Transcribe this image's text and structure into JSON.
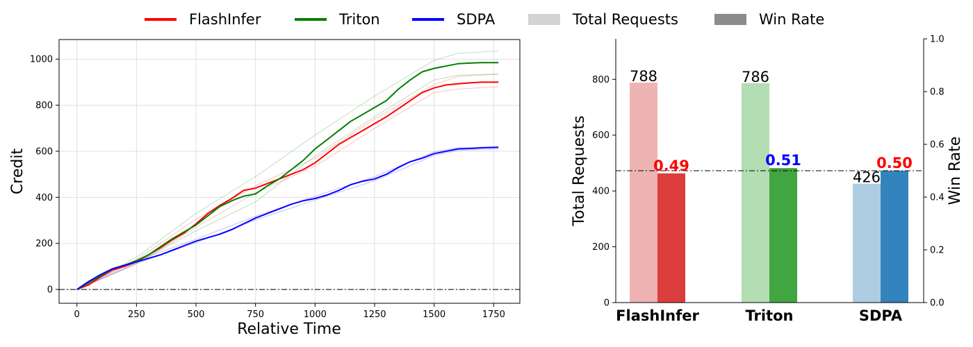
{
  "legend": {
    "items": [
      {
        "label": "FlashInfer",
        "kind": "line",
        "color": "#ff0000"
      },
      {
        "label": "Triton",
        "kind": "line",
        "color": "#008000"
      },
      {
        "label": "SDPA",
        "kind": "line",
        "color": "#0000ff"
      },
      {
        "label": "Total Requests",
        "kind": "patch",
        "color": "#d3d3d3"
      },
      {
        "label": "Win Rate",
        "kind": "patch",
        "color": "#8c8c8c"
      }
    ]
  },
  "chart_data": [
    {
      "type": "line",
      "title": "",
      "xlabel": "Relative Time",
      "ylabel": "Credit",
      "xlim": [
        -75,
        1860
      ],
      "ylim": [
        -60,
        1085
      ],
      "xticks": [
        0,
        250,
        500,
        750,
        1000,
        1250,
        1500,
        1750
      ],
      "yticks": [
        0,
        200,
        400,
        600,
        800,
        1000
      ],
      "grid": true,
      "reference_line": {
        "y": 0,
        "style": "dash-dot",
        "color": "#000000"
      },
      "series": [
        {
          "name": "FlashInfer",
          "color": "#ff0000",
          "x": [
            0,
            50,
            100,
            150,
            200,
            250,
            300,
            350,
            400,
            450,
            500,
            550,
            600,
            650,
            700,
            750,
            800,
            850,
            900,
            950,
            1000,
            1050,
            1100,
            1150,
            1200,
            1250,
            1300,
            1350,
            1400,
            1450,
            1500,
            1550,
            1600,
            1650,
            1700,
            1770
          ],
          "y": [
            0,
            20,
            55,
            85,
            100,
            120,
            150,
            180,
            215,
            245,
            285,
            330,
            365,
            395,
            430,
            440,
            460,
            480,
            500,
            520,
            550,
            590,
            630,
            660,
            690,
            720,
            750,
            785,
            820,
            855,
            875,
            888,
            893,
            897,
            900,
            900
          ],
          "band": [
            {
              "x": [
                0,
                250,
                500,
                750,
                1000,
                1250,
                1500,
                1600,
                1770
              ],
              "y": [
                0,
                130,
                305,
                450,
                570,
                740,
                890,
                925,
                935
              ]
            },
            {
              "x": [
                0,
                250,
                500,
                750,
                1000,
                1250,
                1500,
                1600,
                1770
              ],
              "y": [
                0,
                110,
                270,
                420,
                535,
                700,
                855,
                870,
                880
              ]
            }
          ]
        },
        {
          "name": "Triton",
          "color": "#008000",
          "x": [
            0,
            50,
            100,
            150,
            200,
            250,
            300,
            350,
            400,
            450,
            500,
            550,
            600,
            650,
            700,
            750,
            800,
            850,
            900,
            950,
            1000,
            1050,
            1100,
            1150,
            1200,
            1250,
            1300,
            1350,
            1400,
            1450,
            1500,
            1550,
            1600,
            1650,
            1700,
            1770
          ],
          "y": [
            0,
            30,
            60,
            90,
            105,
            125,
            150,
            185,
            220,
            250,
            280,
            320,
            360,
            385,
            405,
            415,
            450,
            480,
            520,
            560,
            610,
            650,
            690,
            730,
            760,
            790,
            820,
            870,
            910,
            945,
            960,
            970,
            980,
            983,
            985,
            985
          ],
          "band": [
            {
              "x": [
                0,
                250,
                500,
                750,
                1000,
                1250,
                1500,
                1600,
                1770
              ],
              "y": [
                0,
                140,
                330,
                490,
                670,
                840,
                995,
                1025,
                1035
              ]
            },
            {
              "x": [
                0,
                250,
                500,
                750,
                1000,
                1250,
                1500,
                1600,
                1770
              ],
              "y": [
                0,
                115,
                255,
                380,
                580,
                750,
                910,
                930,
                935
              ]
            }
          ]
        },
        {
          "name": "SDPA",
          "color": "#0000ff",
          "x": [
            0,
            50,
            100,
            150,
            200,
            250,
            300,
            350,
            400,
            450,
            500,
            550,
            600,
            650,
            700,
            750,
            800,
            850,
            900,
            950,
            1000,
            1050,
            1100,
            1150,
            1200,
            1250,
            1300,
            1350,
            1400,
            1450,
            1500,
            1550,
            1600,
            1650,
            1700,
            1770
          ],
          "y": [
            0,
            35,
            65,
            90,
            105,
            120,
            135,
            150,
            170,
            190,
            210,
            225,
            240,
            260,
            285,
            310,
            330,
            350,
            370,
            385,
            395,
            410,
            430,
            455,
            470,
            480,
            500,
            530,
            555,
            570,
            590,
            600,
            610,
            612,
            615,
            617
          ],
          "band": [
            {
              "x": [
                0,
                250,
                500,
                750,
                1000,
                1250,
                1500,
                1600,
                1770
              ],
              "y": [
                0,
                125,
                218,
                318,
                405,
                490,
                598,
                615,
                620
              ]
            },
            {
              "x": [
                0,
                250,
                500,
                750,
                1000,
                1250,
                1500,
                1600,
                1770
              ],
              "y": [
                0,
                113,
                203,
                302,
                388,
                472,
                582,
                603,
                610
              ]
            }
          ]
        }
      ]
    },
    {
      "type": "bar",
      "categories": [
        "FlashInfer",
        "Triton",
        "SDPA"
      ],
      "series": [
        {
          "name": "Total Requests",
          "axis": "left",
          "values": [
            788,
            786,
            426
          ],
          "labels": [
            "788",
            "786",
            "426"
          ],
          "colors": [
            "#eeb3b3",
            "#b3deb3",
            "#aecde2"
          ]
        },
        {
          "name": "Win Rate",
          "axis": "right",
          "values": [
            0.49,
            0.51,
            0.5
          ],
          "labels": [
            "0.49",
            "0.51",
            "0.50"
          ],
          "colors": [
            "#db3d3d",
            "#41a541",
            "#3383bd"
          ],
          "label_colors": [
            "#ff0000",
            "#0000ff",
            "#ff0000"
          ]
        }
      ],
      "ylabel_left": "Total Requests",
      "ylabel_right": "Win Rate",
      "ylim_left": [
        0,
        945
      ],
      "ylim_right": [
        0,
        1.0
      ],
      "yticks_left": [
        0,
        200,
        400,
        600,
        800
      ],
      "yticks_right": [
        "0.0",
        "0.2",
        "0.4",
        "0.6",
        "0.8",
        "1.0"
      ],
      "reference_line": {
        "axis": "right",
        "y": 0.5,
        "style": "dash-dot",
        "color": "#000000"
      }
    }
  ]
}
